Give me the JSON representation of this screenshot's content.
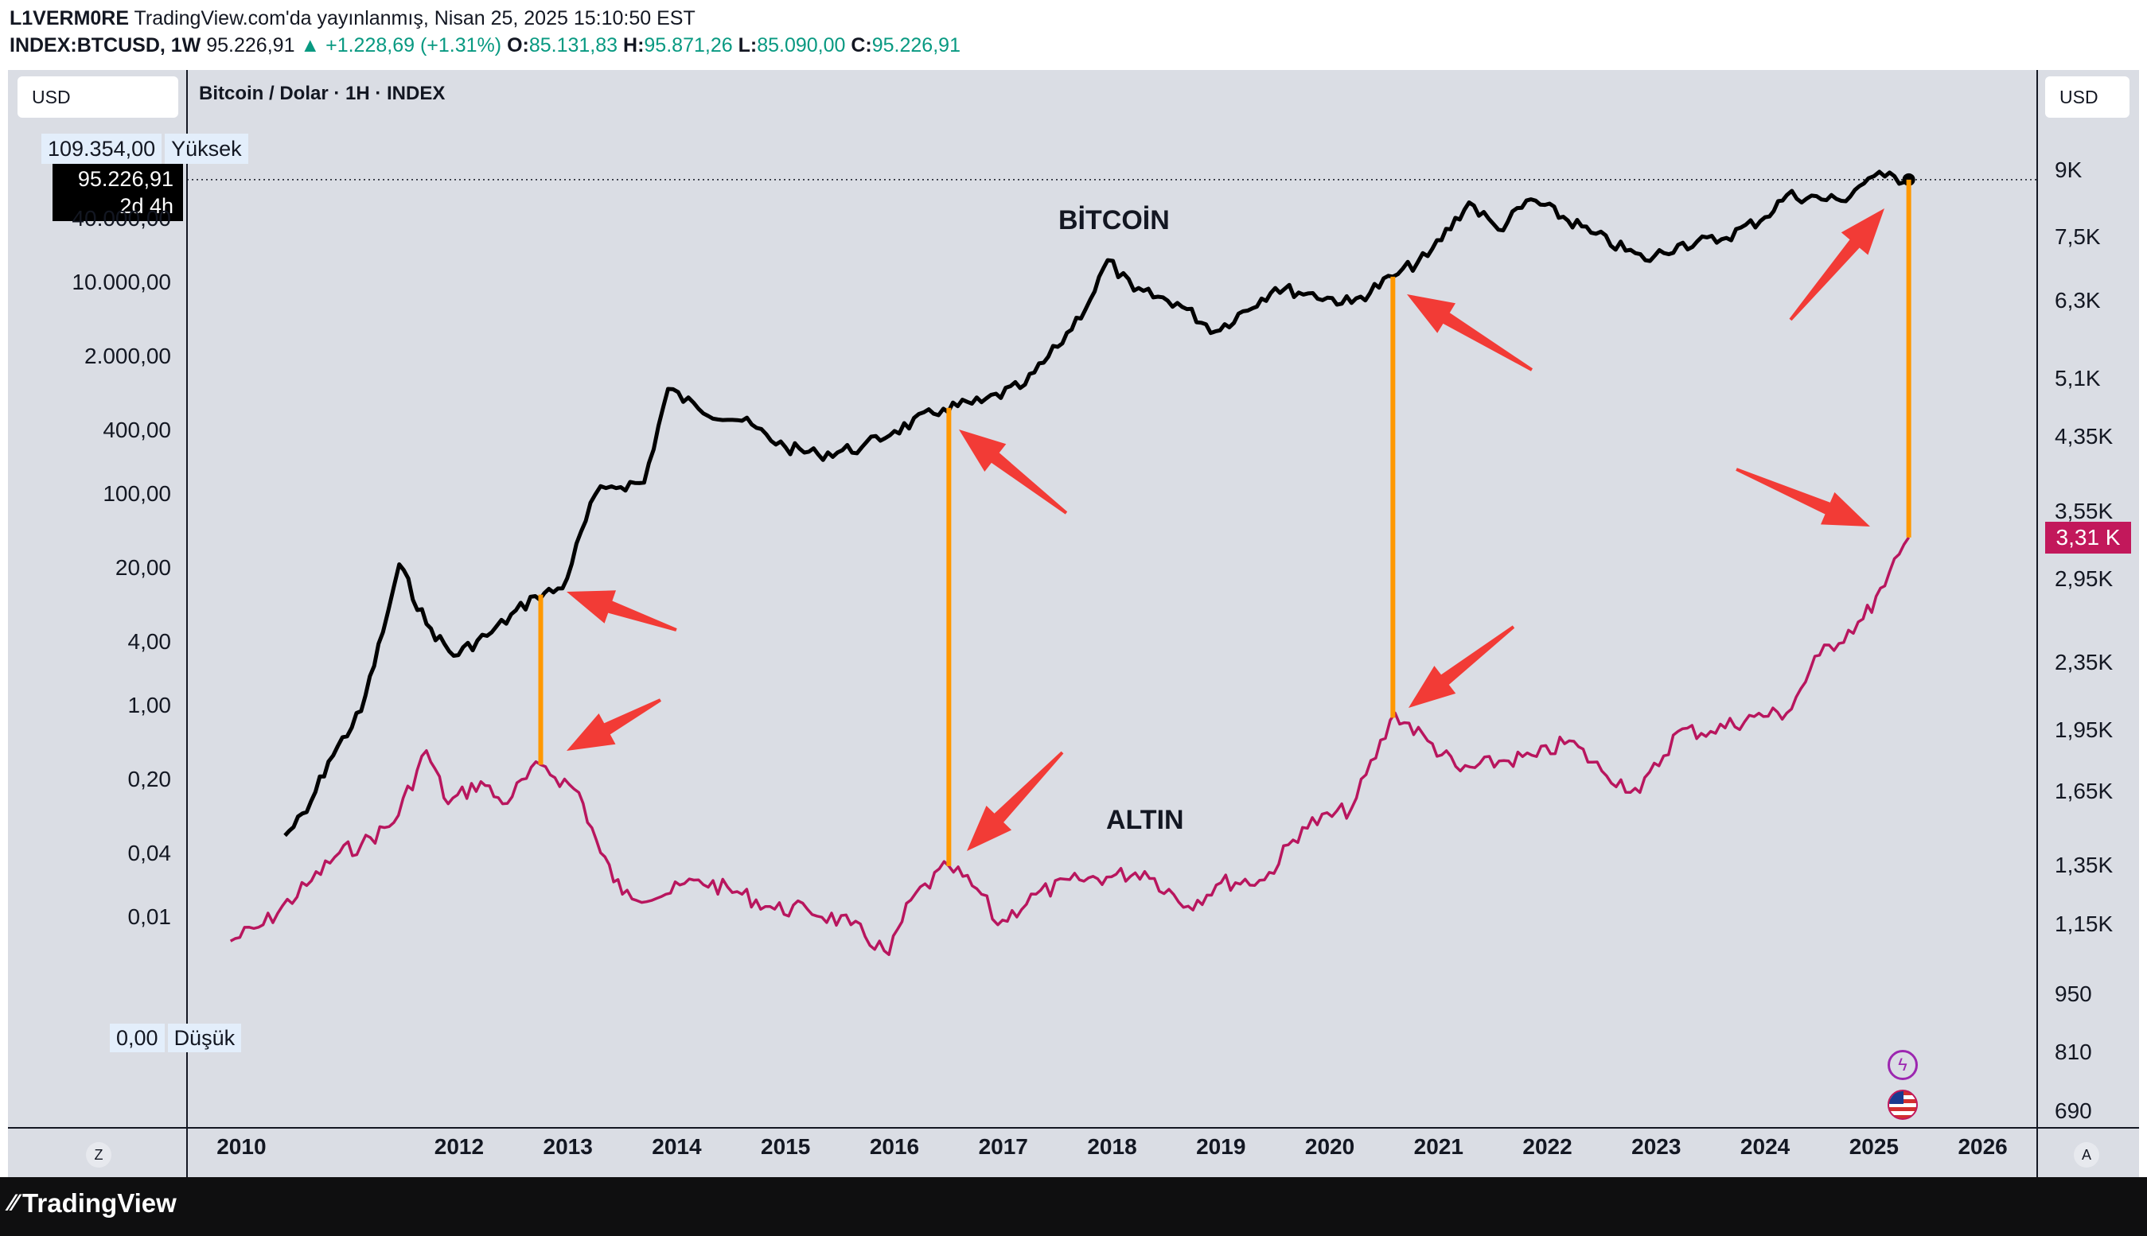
{
  "header": {
    "line1_author": "L1VERM0RE",
    "line1_text": "TradingView.com'da yayınlanmış, Nisan 25, 2025 15:10:50 EST",
    "symbol": "INDEX:BTCUSD, 1W",
    "price": "95.226,91",
    "change": "▲ +1.228,69 (+1.31%)",
    "o_label": "O:",
    "o_value": "85.131,83",
    "h_label": "H:",
    "h_value": "95.871,26",
    "l_label": "L:",
    "l_value": "85.090,00",
    "c_label": "C:",
    "c_value": "95.226,91"
  },
  "left_currency": "USD",
  "right_currency": "USD",
  "chart_title": "Bitcoin / Dolar · 1H · INDEX",
  "high_marker": {
    "value": "109.354,00",
    "label": "Yüksek"
  },
  "low_marker": {
    "value": "0,00",
    "label": "Düşük"
  },
  "last_price": {
    "value": "95.226,91",
    "countdown": "2d 4h"
  },
  "gold_last": {
    "value": "3,31 K"
  },
  "left_axis_ticks": [
    "40.000,00",
    "10.000,00",
    "2.000,00",
    "400,00",
    "100,00",
    "20,00",
    "4,00",
    "1,00",
    "0,20",
    "0,04",
    "0,01"
  ],
  "right_axis_ticks": [
    "9K",
    "7,5K",
    "6,3K",
    "5,1K",
    "4,35K",
    "3,55K",
    "2,95K",
    "2,35K",
    "1,95K",
    "1,65K",
    "1,35K",
    "1,15K",
    "950",
    "810",
    "690"
  ],
  "x_axis_ticks": [
    "2010",
    "2012",
    "2013",
    "2014",
    "2015",
    "2016",
    "2017",
    "2018",
    "2019",
    "2020",
    "2021",
    "2022",
    "2023",
    "2024",
    "2025",
    "2026"
  ],
  "annotations": {
    "bitcoin_label": "BİTCOİN",
    "gold_label": "ALTIN"
  },
  "corner_left": "Z",
  "corner_right": "A",
  "brand": "TradingView",
  "colors": {
    "bitcoin": "#000000",
    "gold": "#b8165e",
    "connector": "#ff9800",
    "arrow": "#f23b36",
    "panel": "#dadde4",
    "gold_tag": "#c2185b"
  },
  "chart_data": {
    "type": "line",
    "title": "Bitcoin / Dolar · 1H · INDEX",
    "xlabel": "",
    "ylabel": "",
    "x_range": [
      2009.5,
      2026.5
    ],
    "series": [
      {
        "name": "BİTCOİN",
        "axis": "left",
        "scale": "log",
        "x": [
          2010.4,
          2010.6,
          2010.8,
          2011.1,
          2011.3,
          2011.45,
          2011.7,
          2011.95,
          2012.3,
          2012.7,
          2012.95,
          2013.25,
          2013.4,
          2013.7,
          2013.92,
          2014.2,
          2014.6,
          2015.0,
          2015.3,
          2015.7,
          2016.0,
          2016.45,
          2016.8,
          2017.2,
          2017.5,
          2017.8,
          2017.96,
          2018.2,
          2018.6,
          2018.95,
          2019.5,
          2019.8,
          2020.2,
          2020.58,
          2020.9,
          2021.28,
          2021.55,
          2021.85,
          2022.4,
          2022.9,
          2023.2,
          2023.6,
          2024.0,
          2024.2,
          2024.7,
          2024.95,
          2025.1,
          2025.32
        ],
        "values": [
          0.06,
          0.1,
          0.3,
          0.9,
          5,
          22,
          6,
          3,
          5,
          11,
          13,
          100,
          120,
          130,
          1000,
          650,
          500,
          280,
          240,
          280,
          400,
          650,
          750,
          1100,
          2500,
          7000,
          16500,
          8500,
          6500,
          3500,
          9000,
          8000,
          6500,
          11500,
          18000,
          58000,
          32000,
          62000,
          30000,
          16500,
          23000,
          26000,
          42000,
          68000,
          60000,
          98000,
          102000,
          95226.91
        ]
      },
      {
        "name": "ALTIN",
        "axis": "right",
        "scale": "log",
        "x": [
          2009.9,
          2010.2,
          2010.6,
          2010.9,
          2011.1,
          2011.4,
          2011.7,
          2011.9,
          2012.2,
          2012.4,
          2012.75,
          2013.1,
          2013.3,
          2013.5,
          2013.9,
          2014.2,
          2014.6,
          2014.9,
          2015.2,
          2015.6,
          2015.95,
          2016.15,
          2016.5,
          2016.8,
          2016.95,
          2017.3,
          2017.7,
          2017.95,
          2018.3,
          2018.7,
          2019.0,
          2019.4,
          2019.75,
          2020.2,
          2020.6,
          2020.9,
          2021.2,
          2021.6,
          2021.9,
          2022.2,
          2022.5,
          2022.85,
          2023.2,
          2023.5,
          2023.9,
          2024.2,
          2024.5,
          2024.9,
          2025.1,
          2025.32
        ],
        "values": [
          1100,
          1150,
          1280,
          1400,
          1430,
          1520,
          1850,
          1600,
          1700,
          1600,
          1780,
          1650,
          1400,
          1250,
          1250,
          1300,
          1250,
          1200,
          1200,
          1150,
          1060,
          1230,
          1350,
          1250,
          1150,
          1250,
          1300,
          1310,
          1330,
          1210,
          1290,
          1300,
          1500,
          1580,
          2050,
          1900,
          1750,
          1800,
          1820,
          1900,
          1750,
          1650,
          1950,
          1950,
          2030,
          2050,
          2400,
          2650,
          2900,
          3310
        ]
      }
    ]
  }
}
